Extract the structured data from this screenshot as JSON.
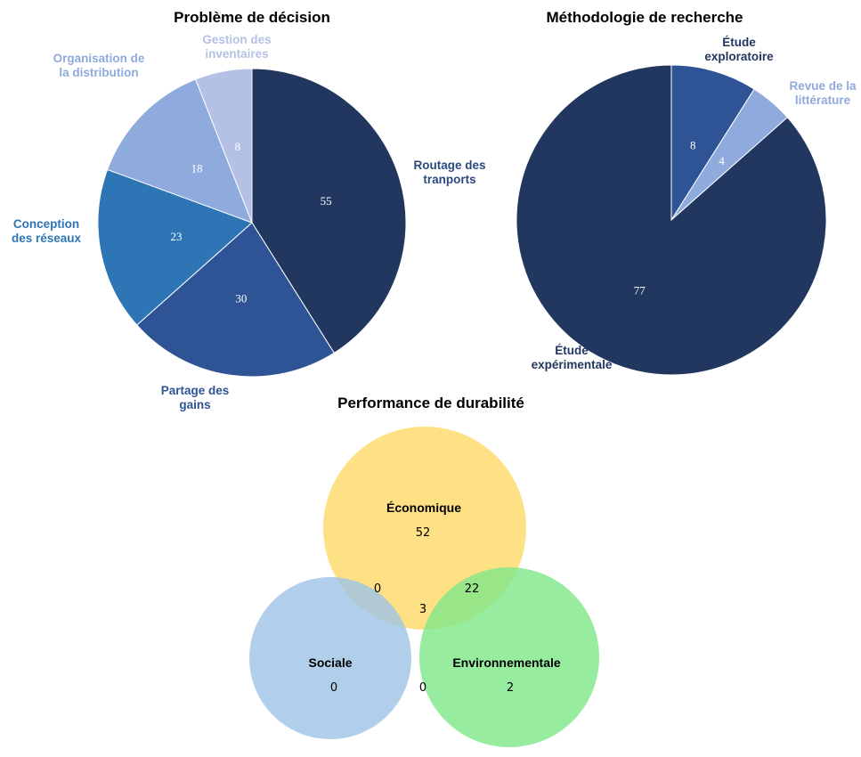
{
  "chart_data": [
    {
      "type": "pie",
      "title": "Problème de décision",
      "start_angle_deg": 0,
      "direction": "clockwise",
      "slices": [
        {
          "label_lines": [
            "Routage des",
            "tranports"
          ],
          "value": 55,
          "color": "#21375f",
          "label_color": "#2b4a7c"
        },
        {
          "label_lines": [
            "Partage des",
            "gains"
          ],
          "value": 30,
          "color": "#2f5496",
          "label_color": "#2f5496"
        },
        {
          "label_lines": [
            "Conception",
            "des réseaux"
          ],
          "value": 23,
          "color": "#2e75b6",
          "label_color": "#2e75b6"
        },
        {
          "label_lines": [
            "Organisation de",
            "la distribution"
          ],
          "value": 18,
          "color": "#8faadc",
          "label_color": "#8faadc"
        },
        {
          "label_lines": [
            "Gestion des",
            "inventaires"
          ],
          "value": 8,
          "color": "#b4c1e4",
          "label_color": "#b4c1e4"
        }
      ]
    },
    {
      "type": "pie",
      "title": "Méthodologie de recherche",
      "start_angle_deg": 0,
      "direction": "clockwise",
      "slices": [
        {
          "label_lines": [
            "Étude",
            "exploratoire"
          ],
          "value": 8,
          "color": "#2f5496",
          "label_color": "#21375f"
        },
        {
          "label_lines": [
            "Revue de la",
            "littérature"
          ],
          "value": 4,
          "color": "#8faadc",
          "label_color": "#8faadc"
        },
        {
          "label_lines": [
            "Étude",
            "expérimentale"
          ],
          "value": 77,
          "color": "#21375f",
          "label_color": "#21375f"
        }
      ]
    },
    {
      "type": "venn",
      "title": "Performance de durabilité",
      "sets": [
        {
          "name": "Économique",
          "only": 52,
          "color": "#ffd966"
        },
        {
          "name": "Sociale",
          "only": 0,
          "color": "#9dc3e6"
        },
        {
          "name": "Environnementale",
          "only": 2,
          "color": "#7ee787"
        }
      ],
      "intersections": {
        "economique_sociale": 0,
        "economique_environnementale": 22,
        "sociale_environnementale": 0,
        "all_three": 3
      }
    }
  ]
}
